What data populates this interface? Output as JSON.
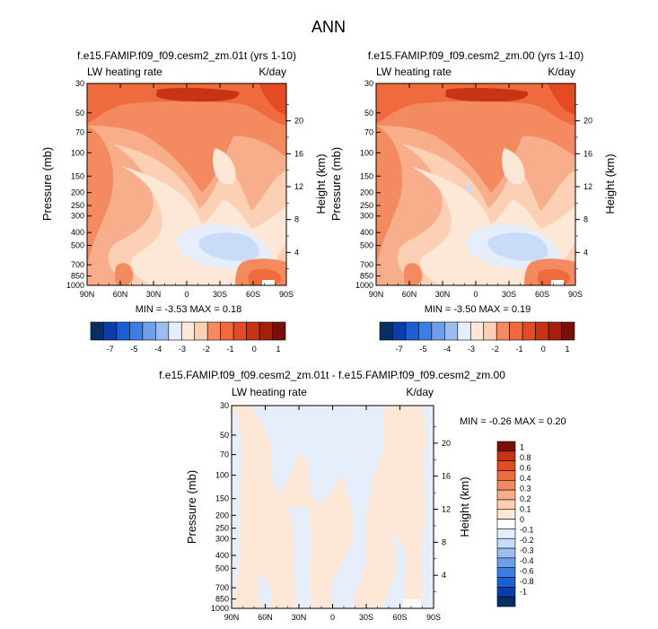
{
  "figure": {
    "title": "ANN"
  },
  "palette": {
    "anomaly_colors": [
      "#053061",
      "#0b3ea8",
      "#1a5fd6",
      "#3a7ee6",
      "#6f9fe8",
      "#9dbdf0",
      "#c9dcf7",
      "#e6eefb",
      "#fde8d8",
      "#fbd0b4",
      "#f8ae8a",
      "#f48a60",
      "#ef6a3c",
      "#e44b22",
      "#c93315",
      "#a4200c",
      "#7a0f0a"
    ]
  },
  "chart_data": [
    {
      "id": "panel1",
      "type": "heatmap",
      "title": "f.e15.FAMIP.f09_f09.cesm2_zm.01t (yrs 1-10)",
      "variable": "LW heating rate",
      "units": "K/day",
      "ylabel": "Pressure (mb)",
      "y2label": "Height (km)",
      "xticks": [
        "90N",
        "60N",
        "30N",
        "0",
        "30S",
        "60S",
        "90S"
      ],
      "yticks": [
        30,
        50,
        70,
        100,
        150,
        200,
        250,
        300,
        400,
        500,
        700,
        850,
        1000
      ],
      "y2ticks": [
        20,
        16,
        12,
        8,
        4
      ],
      "stats": "MIN =  -3.53  MAX =  0.18",
      "min": -3.53,
      "max": 0.18,
      "colorbar_ticks": [
        "-7",
        "-5",
        "-4",
        "-3",
        "-2",
        "-1",
        "0",
        "1"
      ]
    },
    {
      "id": "panel2",
      "type": "heatmap",
      "title": "f.e15.FAMIP.f09_f09.cesm2_zm.00 (yrs 1-10)",
      "variable": "LW heating rate",
      "units": "K/day",
      "ylabel": "Pressure (mb)",
      "y2label": "Height (km)",
      "xticks": [
        "90N",
        "60N",
        "30N",
        "0",
        "30S",
        "60S",
        "90S"
      ],
      "yticks": [
        30,
        50,
        70,
        100,
        150,
        200,
        250,
        300,
        400,
        500,
        700,
        850,
        1000
      ],
      "y2ticks": [
        20,
        16,
        12,
        8,
        4
      ],
      "stats": "MIN =  -3.50  MAX =  0.19",
      "min": -3.5,
      "max": 0.19,
      "colorbar_ticks": [
        "-7",
        "-5",
        "-4",
        "-3",
        "-2",
        "-1",
        "0",
        "1"
      ]
    },
    {
      "id": "panel3",
      "type": "heatmap",
      "title": "f.e15.FAMIP.f09_f09.cesm2_zm.01t - f.e15.FAMIP.f09_f09.cesm2_zm.00",
      "variable": "LW heating rate",
      "units": "K/day",
      "ylabel": "Pressure (mb)",
      "y2label": "Height (km)",
      "xticks": [
        "90N",
        "60N",
        "30N",
        "0",
        "30S",
        "60S",
        "90S"
      ],
      "yticks": [
        30,
        50,
        70,
        100,
        150,
        200,
        250,
        300,
        400,
        500,
        700,
        850,
        1000
      ],
      "y2ticks": [
        20,
        16,
        12,
        8,
        4
      ],
      "stats": "MIN =  -0.26  MAX =   0.20",
      "min": -0.26,
      "max": 0.2,
      "colorbar_ticks": [
        "1",
        "0.8",
        "0.6",
        "0.4",
        "0.3",
        "0.2",
        "0.1",
        "0",
        "-0.1",
        "-0.2",
        "-0.3",
        "-0.4",
        "-0.6",
        "-0.8",
        "-1"
      ]
    }
  ]
}
